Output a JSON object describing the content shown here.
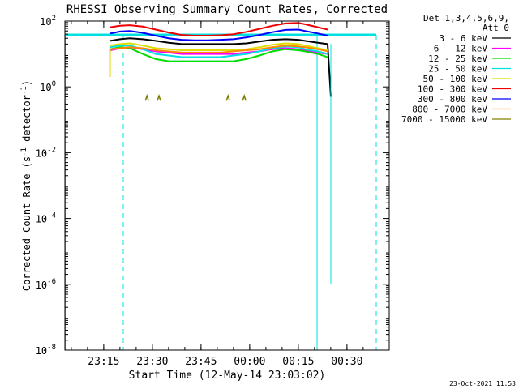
{
  "chart_data": {
    "type": "line",
    "title": "RHESSI Observing Summary Count Rates, Corrected",
    "xlabel": "Start Time (12-May-14 23:03:02)",
    "ylabel_parts": [
      "Corrected Count Rate (s",
      "-1",
      " detector",
      "-1",
      ")"
    ],
    "x_unit": "minutes after 23:03:02",
    "xlim": [
      0,
      100
    ],
    "ylim": [
      1e-08,
      100
    ],
    "yscale": "log",
    "x_ticks": [
      {
        "x": 11.97,
        "label": "23:15"
      },
      {
        "x": 26.97,
        "label": "23:30"
      },
      {
        "x": 41.97,
        "label": "23:45"
      },
      {
        "x": 56.97,
        "label": "00:00"
      },
      {
        "x": 71.97,
        "label": "00:15"
      },
      {
        "x": 86.97,
        "label": "00:30"
      }
    ],
    "y_ticks": [
      {
        "v": 100,
        "base": "10",
        "exp": "2"
      },
      {
        "v": 1,
        "base": "10",
        "exp": "0"
      },
      {
        "v": 0.01,
        "base": "10",
        "exp": "-2"
      },
      {
        "v": 0.0001,
        "base": "10",
        "exp": "-4"
      },
      {
        "v": 1e-06,
        "base": "10",
        "exp": "-6"
      },
      {
        "v": 1e-08,
        "base": "10",
        "exp": "-8"
      }
    ],
    "legend": {
      "position": "right",
      "header": [
        "Det 1,3,4,5,6,9,",
        "Att 0"
      ]
    },
    "series": [
      {
        "name": "3 - 6 keV",
        "color": "#000000",
        "x": [
          14,
          17,
          20,
          24,
          28,
          32,
          36,
          40,
          44,
          48,
          52,
          56,
          60,
          64,
          68,
          72,
          74,
          78,
          81,
          82
        ],
        "y": [
          25,
          28,
          30,
          28,
          25,
          22,
          20,
          20,
          20,
          20,
          20,
          21,
          24,
          27,
          28,
          27,
          25,
          22,
          20,
          0.5
        ]
      },
      {
        "name": "6 - 12 keV",
        "color": "#ff00ff",
        "x": [
          14,
          17,
          20,
          24,
          28,
          32,
          36,
          40,
          44,
          48,
          52,
          56,
          60,
          64,
          68,
          72,
          74,
          78,
          81
        ],
        "y": [
          13,
          15,
          16,
          14,
          12,
          11,
          10,
          10,
          10,
          10,
          10,
          11,
          12,
          14,
          15,
          14,
          13,
          11,
          10
        ]
      },
      {
        "name": "12 - 25 keV",
        "color": "#00dd00",
        "x": [
          14,
          17,
          20,
          24,
          28,
          32,
          36,
          40,
          44,
          48,
          52,
          56,
          60,
          64,
          68,
          72,
          74,
          78,
          81
        ],
        "y": [
          14,
          16,
          15,
          10,
          7,
          6,
          6,
          6,
          6,
          6,
          6,
          7,
          9,
          12,
          14,
          13,
          12,
          10,
          8
        ]
      },
      {
        "name": "25 - 50 keV",
        "color": "#00e0e0",
        "x": [
          14,
          17,
          20,
          24,
          28,
          32,
          36,
          40,
          44,
          48,
          52,
          56,
          60,
          64,
          68,
          72,
          74,
          78,
          81
        ],
        "y": [
          16,
          18,
          18,
          14,
          10,
          9,
          8,
          8,
          8,
          8,
          9,
          10,
          12,
          15,
          17,
          16,
          14,
          12,
          10
        ]
      },
      {
        "name": "50 - 100 keV",
        "color": "#dddd00",
        "x": [
          14,
          17,
          20,
          24,
          28,
          32,
          36,
          40,
          44,
          48,
          52,
          56,
          60,
          64,
          68,
          72,
          74,
          78,
          81
        ],
        "y": [
          18,
          20,
          21,
          18,
          15,
          14,
          13,
          13,
          13,
          13,
          13,
          14,
          16,
          19,
          21,
          20,
          18,
          15,
          13
        ]
      },
      {
        "name": "100 - 300 keV",
        "color": "#ee0000",
        "x": [
          14,
          17,
          20,
          24,
          28,
          32,
          36,
          40,
          44,
          48,
          52,
          56,
          60,
          64,
          68,
          72,
          74,
          78,
          81
        ],
        "y": [
          65,
          72,
          75,
          68,
          55,
          45,
          38,
          36,
          36,
          37,
          40,
          47,
          58,
          72,
          85,
          88,
          80,
          65,
          55
        ]
      },
      {
        "name": "300 - 800 keV",
        "color": "#0000ff",
        "x": [
          14,
          17,
          20,
          24,
          28,
          32,
          36,
          40,
          44,
          48,
          52,
          56,
          60,
          64,
          68,
          72,
          74,
          78,
          81
        ],
        "y": [
          42,
          48,
          50,
          44,
          36,
          30,
          27,
          26,
          26,
          27,
          28,
          32,
          38,
          46,
          54,
          55,
          50,
          42,
          36
        ]
      },
      {
        "name": "800 - 7000 keV",
        "color": "#ff8800",
        "x": [
          14,
          17,
          20,
          24,
          28,
          32,
          36,
          40,
          44,
          48,
          52,
          56,
          60,
          64,
          68,
          72,
          74,
          78,
          81
        ],
        "y": [
          14,
          15,
          16,
          15,
          13,
          12,
          11,
          11,
          11,
          11,
          12,
          13,
          14,
          16,
          18,
          17,
          16,
          14,
          12
        ]
      },
      {
        "name": "7000 - 15000 keV",
        "color": "#808000",
        "x": [
          25.3,
          29,
          50.3,
          55.3
        ],
        "y": [
          0.45,
          0.45,
          0.45,
          0.45
        ]
      }
    ],
    "attenuator_line": {
      "color": "#00e0e0",
      "y": 38,
      "x_range": [
        0,
        96
      ],
      "drops_at_x": [
        0,
        77.5
      ]
    },
    "dashed_lines_x": [
      18,
      96
    ],
    "drop_traces": [
      {
        "color": "#00e0e0",
        "x": 82,
        "y_from": 20,
        "y_to": 1e-06
      },
      {
        "color": "#dddd00",
        "x": 14,
        "y_from": 15,
        "y_to": 2
      }
    ]
  },
  "timestamp": "23-Oct-2021 11:53"
}
